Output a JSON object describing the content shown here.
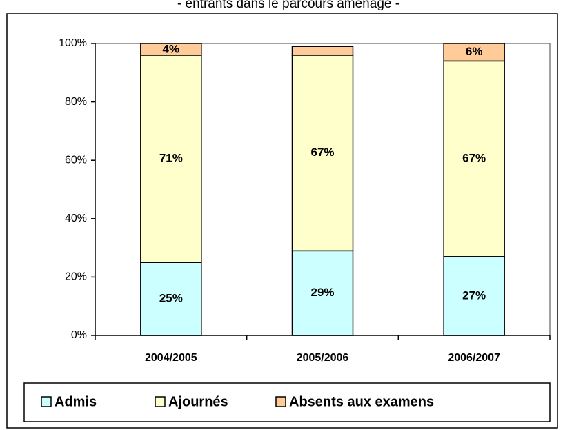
{
  "chart_data": {
    "type": "stacked_bar",
    "title": "- entrants dans le parcours aménagé -",
    "categories": [
      "2004/2005",
      "2005/2006",
      "2006/2007"
    ],
    "series": [
      {
        "name": "Admis",
        "color": "#ccffff",
        "values": [
          25,
          29,
          27
        ],
        "value_labels": [
          "25%",
          "29%",
          "27%"
        ]
      },
      {
        "name": "Ajournés",
        "color": "#ffffcc",
        "values": [
          71,
          67,
          67
        ],
        "value_labels": [
          "71%",
          "67%",
          "67%"
        ]
      },
      {
        "name": "Absents aux examens",
        "color": "#ffcc99",
        "values": [
          4,
          3,
          6
        ],
        "value_labels": [
          "4%",
          null,
          "6%"
        ]
      }
    ],
    "ylim": [
      0,
      100
    ],
    "yticks": [
      {
        "value": 0,
        "label": "0%"
      },
      {
        "value": 20,
        "label": "20%"
      },
      {
        "value": 40,
        "label": "40%"
      },
      {
        "value": 60,
        "label": "60%"
      },
      {
        "value": 80,
        "label": "80%"
      },
      {
        "value": 100,
        "label": "100%"
      }
    ],
    "legend": "bottom"
  }
}
